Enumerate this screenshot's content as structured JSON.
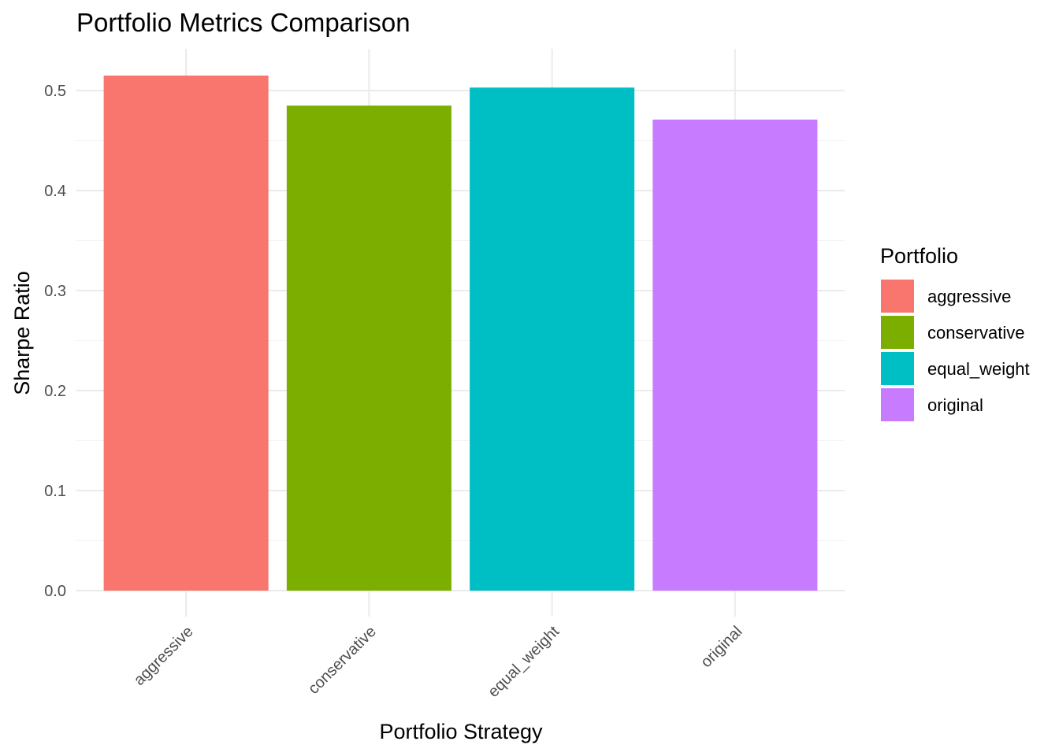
{
  "chart_data": {
    "type": "bar",
    "title": "Portfolio Metrics Comparison",
    "xlabel": "Portfolio Strategy",
    "ylabel": "Sharpe Ratio",
    "categories": [
      "aggressive",
      "conservative",
      "equal_weight",
      "original"
    ],
    "values": [
      0.515,
      0.485,
      0.503,
      0.471
    ],
    "colors": [
      "#F8766D",
      "#7CAE00",
      "#00BFC4",
      "#C77CFF"
    ],
    "ylim": [
      0,
      0.54
    ],
    "yticks": [
      0.0,
      0.1,
      0.2,
      0.3,
      0.4,
      0.5
    ],
    "ytick_labels": [
      "0.0",
      "0.1",
      "0.2",
      "0.3",
      "0.4",
      "0.5"
    ],
    "grid": true,
    "legend": {
      "title": "Portfolio",
      "position": "right",
      "entries": [
        "aggressive",
        "conservative",
        "equal_weight",
        "original"
      ]
    }
  }
}
